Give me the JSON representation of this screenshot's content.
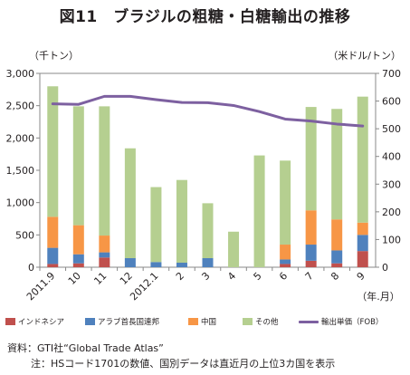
{
  "title": "図11　ブラジルの粗糖・白糖輸出の推移",
  "unit_left": "（千トン）",
  "unit_right": "（米ドル/トン）",
  "x_unit_label": "（年.月）",
  "source_note": "資料：GTI社“Global Trade Atlas”",
  "footnote": "注：HSコード1701の数値、国別データは直近月の上位3カ国を表示",
  "colors": {
    "indonesia": "#c0504d",
    "arab": "#4f81bd",
    "china": "#f79646",
    "other": "#b5cf90",
    "price": "#7d60a0",
    "axis": "#888888"
  },
  "chart_data": {
    "type": "bar",
    "stacked": true,
    "categories": [
      "2011.9",
      "10",
      "11",
      "12",
      "2012.1",
      "2",
      "3",
      "4",
      "5",
      "6",
      "7",
      "8",
      "9"
    ],
    "series": [
      {
        "name": "インドネシア",
        "key": "indonesia",
        "values": [
          50,
          60,
          150,
          0,
          0,
          0,
          0,
          0,
          0,
          50,
          100,
          60,
          250
        ]
      },
      {
        "name": "アラブ首長国連邦",
        "key": "arab",
        "values": [
          250,
          140,
          80,
          140,
          80,
          70,
          140,
          0,
          0,
          70,
          250,
          200,
          250
        ]
      },
      {
        "name": "中国",
        "key": "china",
        "values": [
          480,
          450,
          260,
          0,
          0,
          0,
          0,
          0,
          0,
          230,
          530,
          480,
          190
        ]
      },
      {
        "name": "その他",
        "key": "other",
        "values": [
          2020,
          1840,
          2000,
          1700,
          1160,
          1280,
          850,
          550,
          1730,
          1300,
          1600,
          1710,
          1950
        ]
      }
    ],
    "line": {
      "name": "輸出単価（FOB）",
      "key": "price",
      "axis": "right",
      "values": [
        590,
        588,
        617,
        617,
        605,
        595,
        594,
        584,
        562,
        535,
        528,
        517,
        510
      ]
    },
    "y_left": {
      "min": 0,
      "max": 3000,
      "step": 500,
      "ticks": [
        "0",
        "500",
        "1,000",
        "1,500",
        "2,000",
        "2,500",
        "3,000"
      ]
    },
    "y_right": {
      "min": 0,
      "max": 700,
      "step": 100,
      "ticks": [
        "0",
        "100",
        "200",
        "300",
        "400",
        "500",
        "600",
        "700"
      ]
    },
    "legend_position": "bottom",
    "grid": false
  },
  "legend": [
    {
      "label": "インドネシア",
      "key": "indonesia",
      "kind": "bar"
    },
    {
      "label": "アラブ首長国連邦",
      "key": "arab",
      "kind": "bar"
    },
    {
      "label": "中国",
      "key": "china",
      "kind": "bar"
    },
    {
      "label": "その他",
      "key": "other",
      "kind": "bar"
    },
    {
      "label": "輸出単価（FOB）",
      "key": "price",
      "kind": "line"
    }
  ]
}
